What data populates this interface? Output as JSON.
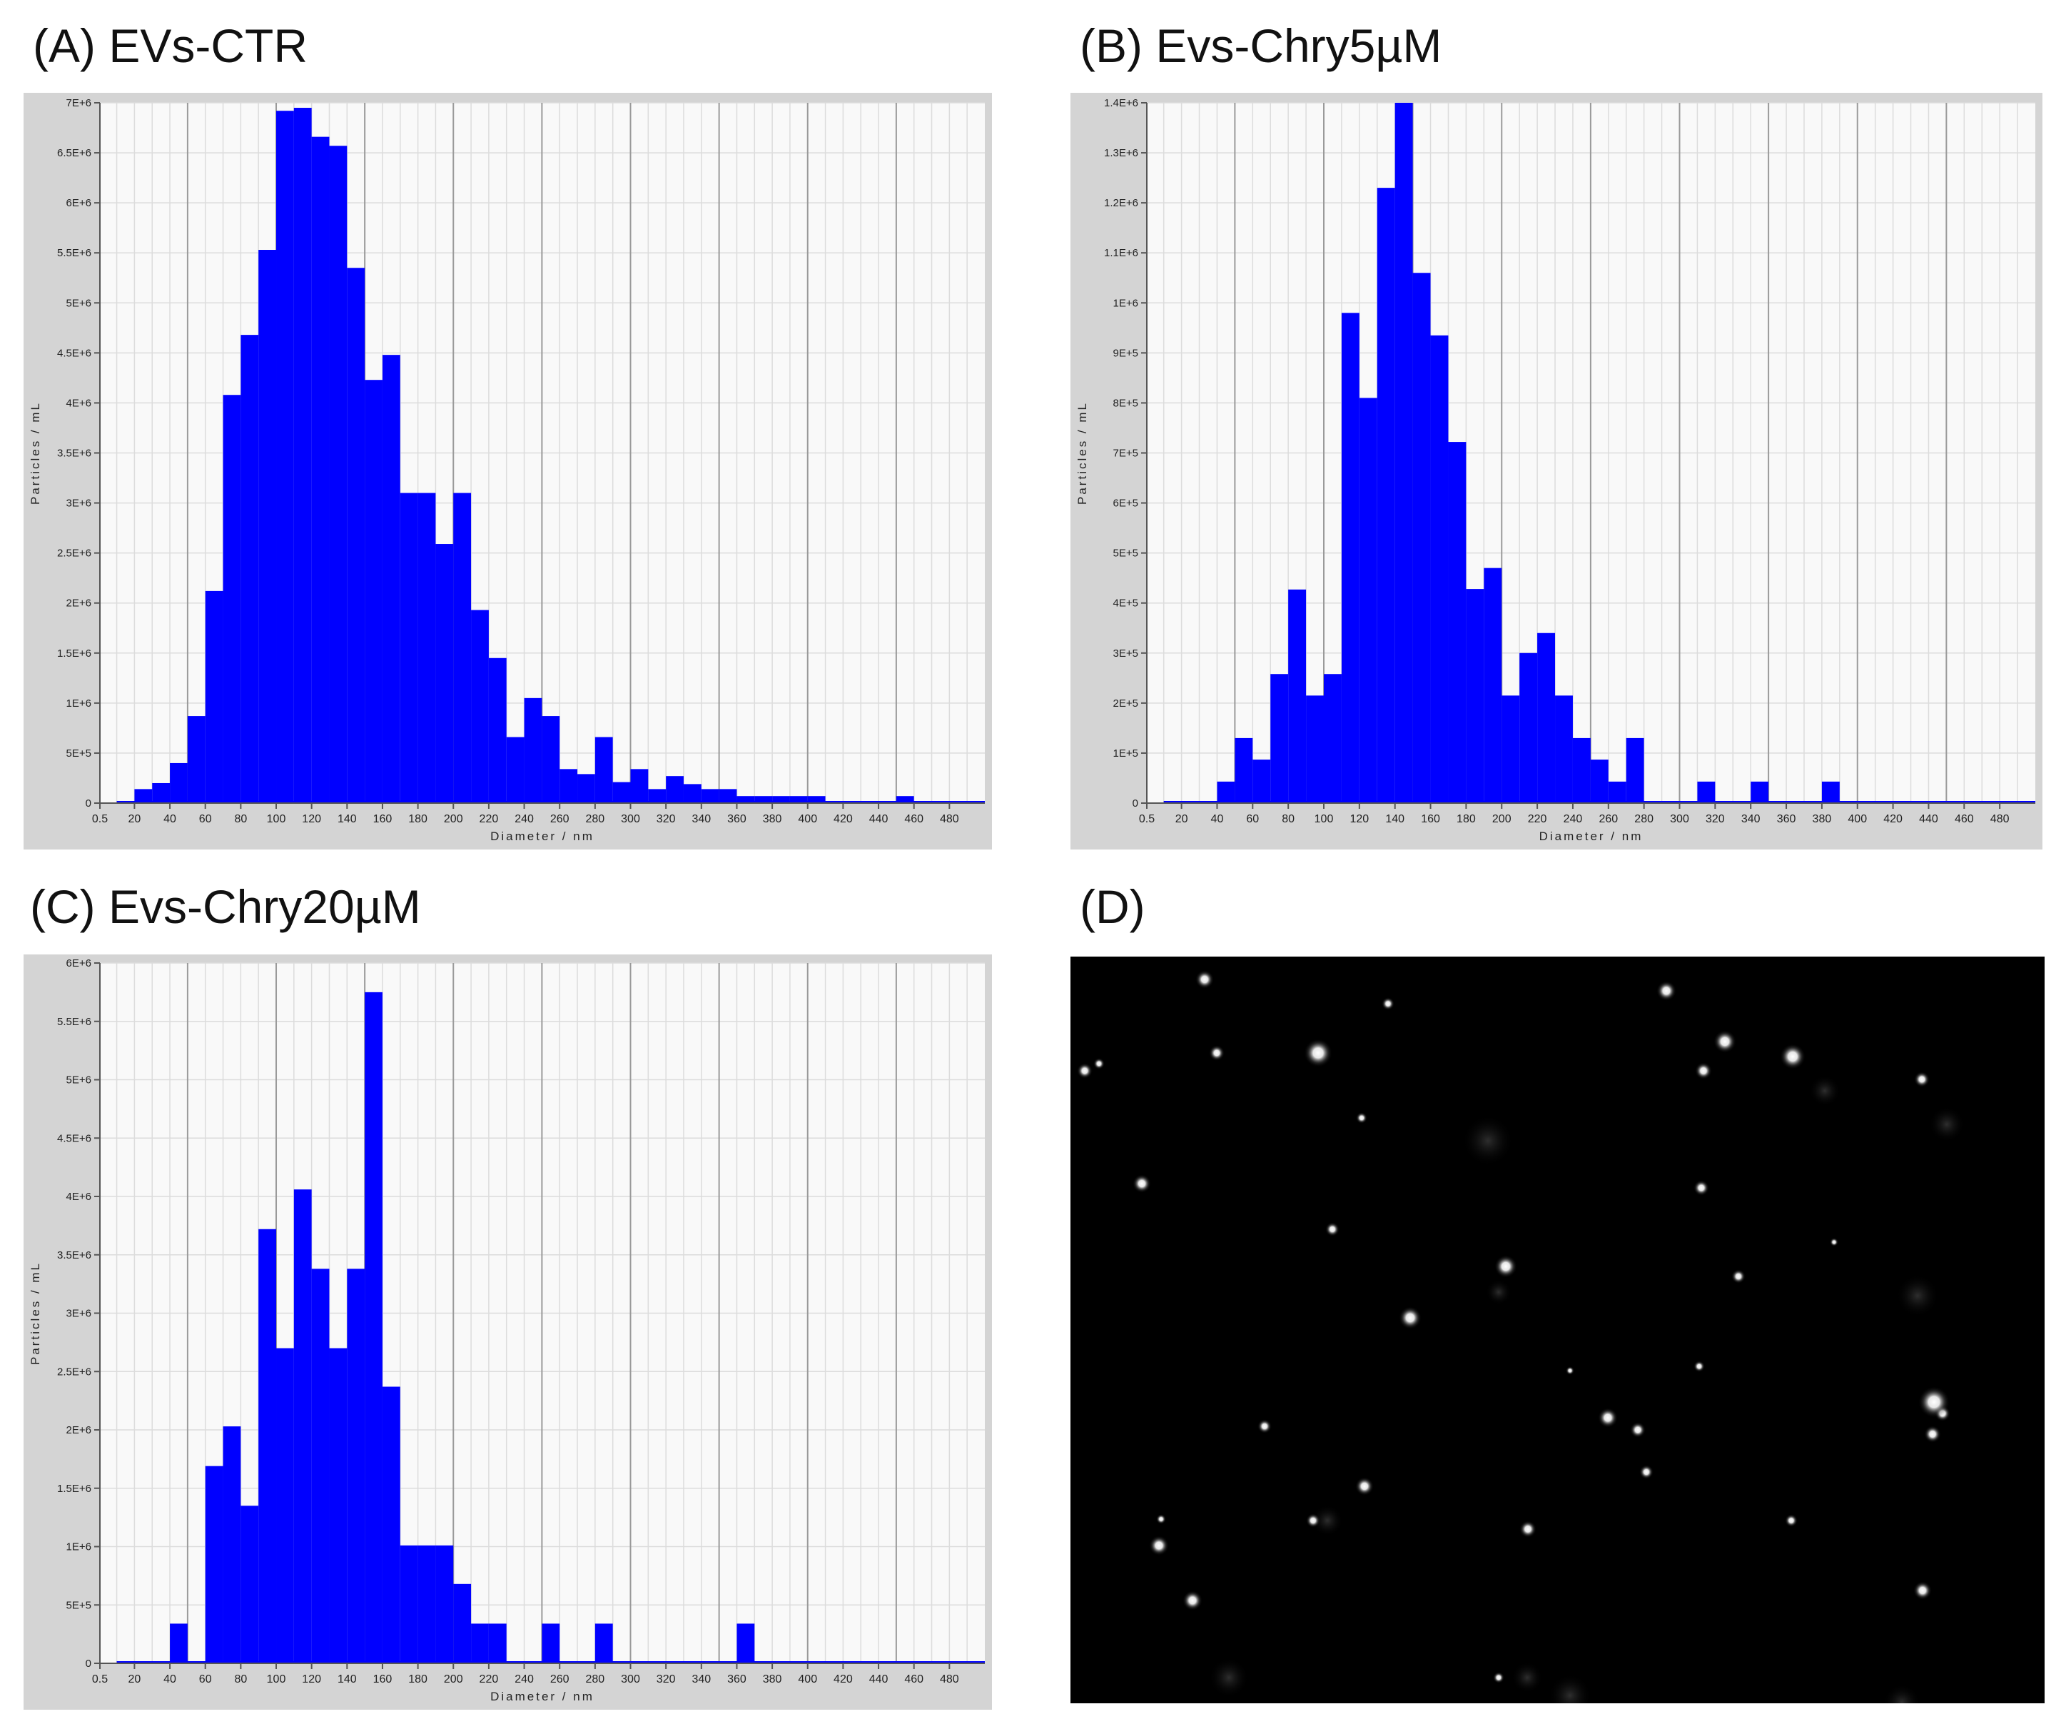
{
  "figure": {
    "panels": [
      {
        "label": "(A) EVs-CTR"
      },
      {
        "label": "(B) Evs-Chry5µM"
      },
      {
        "label": "(C) Evs-Chry20µM"
      },
      {
        "label": "(D)"
      }
    ]
  },
  "colors": {
    "bar": "#0000ff",
    "plot_bg": "#f9f9f9",
    "frame": "#d4d4d4",
    "major_grid": "#9a9a9a",
    "minor_grid": "#dcdcdc"
  },
  "chart_data": [
    {
      "type": "bar",
      "title": "(A) EVs-CTR",
      "xlabel": "Diameter / nm",
      "ylabel": "Particles / mL",
      "xlim": [
        0.5,
        500
      ],
      "ylim": [
        0,
        7000000
      ],
      "x_ticks": [
        "0.5",
        "20",
        "40",
        "60",
        "80",
        "100",
        "120",
        "140",
        "160",
        "180",
        "200",
        "220",
        "240",
        "260",
        "280",
        "300",
        "320",
        "340",
        "360",
        "380",
        "400",
        "420",
        "440",
        "460",
        "480"
      ],
      "y_ticks": [
        "0",
        "5E+5",
        "1E+6",
        "1.5E+6",
        "2E+6",
        "2.5E+6",
        "3E+6",
        "3.5E+6",
        "4E+6",
        "4.5E+6",
        "5E+6",
        "5.5E+6",
        "6E+6",
        "6.5E+6",
        "7E+6"
      ],
      "bin_width_nm": 10,
      "bin_starts": [
        20,
        30,
        40,
        50,
        60,
        70,
        80,
        90,
        100,
        110,
        120,
        130,
        140,
        150,
        160,
        170,
        180,
        190,
        200,
        210,
        220,
        230,
        240,
        250,
        260,
        270,
        280,
        290,
        300,
        310,
        320,
        330,
        340,
        350,
        360,
        370,
        380,
        390,
        400,
        450
      ],
      "values": [
        140000,
        200000,
        400000,
        870000,
        2120000,
        4080000,
        4680000,
        5530000,
        6920000,
        6950000,
        6660000,
        6570000,
        5350000,
        4230000,
        4480000,
        3100000,
        3100000,
        2590000,
        3100000,
        1930000,
        1450000,
        660000,
        1050000,
        870000,
        340000,
        290000,
        660000,
        210000,
        340000,
        140000,
        270000,
        190000,
        140000,
        140000,
        70000,
        70000,
        70000,
        70000,
        70000,
        70000
      ]
    },
    {
      "type": "bar",
      "title": "(B) Evs-Chry5µM",
      "xlabel": "Diameter / nm",
      "ylabel": "Particles / mL",
      "xlim": [
        0.5,
        500
      ],
      "ylim": [
        0,
        1400000
      ],
      "x_ticks": [
        "0.5",
        "20",
        "40",
        "60",
        "80",
        "100",
        "120",
        "140",
        "160",
        "180",
        "200",
        "220",
        "240",
        "260",
        "280",
        "300",
        "320",
        "340",
        "360",
        "380",
        "400",
        "420",
        "440",
        "460",
        "480"
      ],
      "y_ticks": [
        "0",
        "1E+5",
        "2E+5",
        "3E+5",
        "4E+5",
        "5E+5",
        "6E+5",
        "7E+5",
        "8E+5",
        "9E+5",
        "1E+6",
        "1.1E+6",
        "1.2E+6",
        "1.3E+6",
        "1.4E+6"
      ],
      "bin_width_nm": 10,
      "bin_starts": [
        40,
        50,
        60,
        70,
        80,
        90,
        100,
        110,
        120,
        130,
        140,
        150,
        160,
        170,
        180,
        190,
        200,
        210,
        220,
        230,
        240,
        250,
        260,
        270,
        310,
        340,
        380
      ],
      "values": [
        43000,
        130000,
        87000,
        258000,
        427000,
        215000,
        258000,
        980000,
        810000,
        1230000,
        1400000,
        1060000,
        935000,
        722000,
        428000,
        470000,
        215000,
        300000,
        340000,
        215000,
        130000,
        87000,
        43000,
        130000,
        43000,
        43000,
        43000
      ]
    },
    {
      "type": "bar",
      "title": "(C) Evs-Chry20µM",
      "xlabel": "Diameter / nm",
      "ylabel": "Particles / mL",
      "xlim": [
        0.5,
        500
      ],
      "ylim": [
        0,
        6000000
      ],
      "x_ticks": [
        "0.5",
        "20",
        "40",
        "60",
        "80",
        "100",
        "120",
        "140",
        "160",
        "180",
        "200",
        "220",
        "240",
        "260",
        "280",
        "300",
        "320",
        "340",
        "360",
        "380",
        "400",
        "420",
        "440",
        "460",
        "480"
      ],
      "y_ticks": [
        "0",
        "5E+5",
        "1E+6",
        "1.5E+6",
        "2E+6",
        "2.5E+6",
        "3E+6",
        "3.5E+6",
        "4E+6",
        "4.5E+6",
        "5E+6",
        "5.5E+6",
        "6E+6"
      ],
      "bin_width_nm": 10,
      "bin_starts": [
        40,
        60,
        70,
        80,
        90,
        100,
        110,
        120,
        130,
        140,
        150,
        160,
        170,
        180,
        190,
        200,
        210,
        220,
        250,
        280,
        360
      ],
      "values": [
        340000,
        1690000,
        2030000,
        1350000,
        3720000,
        2700000,
        4060000,
        3380000,
        2700000,
        3380000,
        5750000,
        2370000,
        1010000,
        1010000,
        1010000,
        680000,
        340000,
        340000,
        340000,
        340000,
        340000
      ]
    }
  ]
}
